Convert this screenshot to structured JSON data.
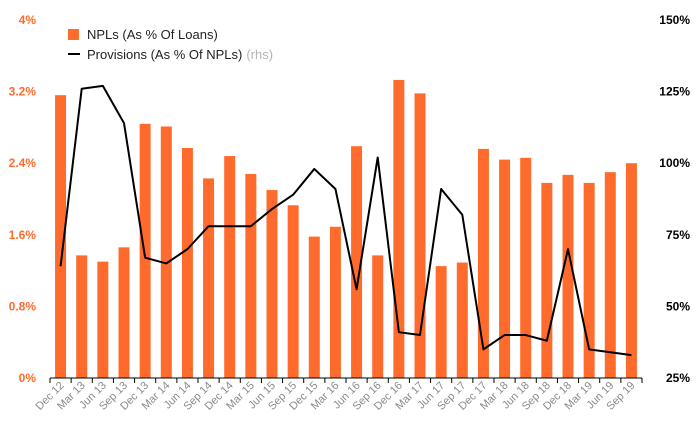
{
  "chart_data": {
    "type": "bar+line",
    "categories": [
      "Dec 12",
      "Mar 13",
      "Jun 13",
      "Sep 13",
      "Dec 13",
      "Mar 14",
      "Jun 14",
      "Sep 14",
      "Dec 14",
      "Mar 15",
      "Jun 15",
      "Sep 15",
      "Dec 15",
      "Mar 16",
      "Jun 16",
      "Sep 16",
      "Dec 16",
      "Mar 17",
      "Jun 17",
      "Sep 17",
      "Dec 17",
      "Mar 18",
      "Jun 18",
      "Sep 18",
      "Dec 18",
      "Mar 19",
      "Jun 19",
      "Sep 19"
    ],
    "series": [
      {
        "name": "NPLs (As % Of Loans)",
        "type": "bar",
        "axis": "left",
        "color": "#ff6b2c",
        "values": [
          3.16,
          1.37,
          1.3,
          1.46,
          2.84,
          2.81,
          2.57,
          2.23,
          2.48,
          2.28,
          2.1,
          1.93,
          1.58,
          1.69,
          2.59,
          1.37,
          3.33,
          3.18,
          1.25,
          1.29,
          2.56,
          2.44,
          2.46,
          2.18,
          2.27,
          2.18,
          2.3,
          2.4
        ]
      },
      {
        "name": "Provisions (As % Of NPLs)",
        "name_suffix": "(rhs)",
        "type": "line",
        "axis": "right",
        "color": "#000000",
        "values": [
          64,
          126,
          127,
          114,
          67,
          65,
          70,
          78,
          78,
          78,
          84,
          89,
          98,
          91,
          56,
          102,
          41,
          40,
          91,
          82,
          35,
          40,
          40,
          38,
          70,
          35,
          34,
          33
        ]
      }
    ],
    "yleft": {
      "min": 0,
      "max": 4,
      "ticks": [
        "0%",
        "0.8%",
        "1.6%",
        "2.4%",
        "3.2%",
        "4%"
      ],
      "color": "#ff6b2c"
    },
    "yright": {
      "min": 25,
      "max": 150,
      "ticks": [
        "25%",
        "50%",
        "75%",
        "100%",
        "125%",
        "150%"
      ],
      "color": "#000000"
    },
    "grid": false,
    "legend_position": "top-left"
  }
}
